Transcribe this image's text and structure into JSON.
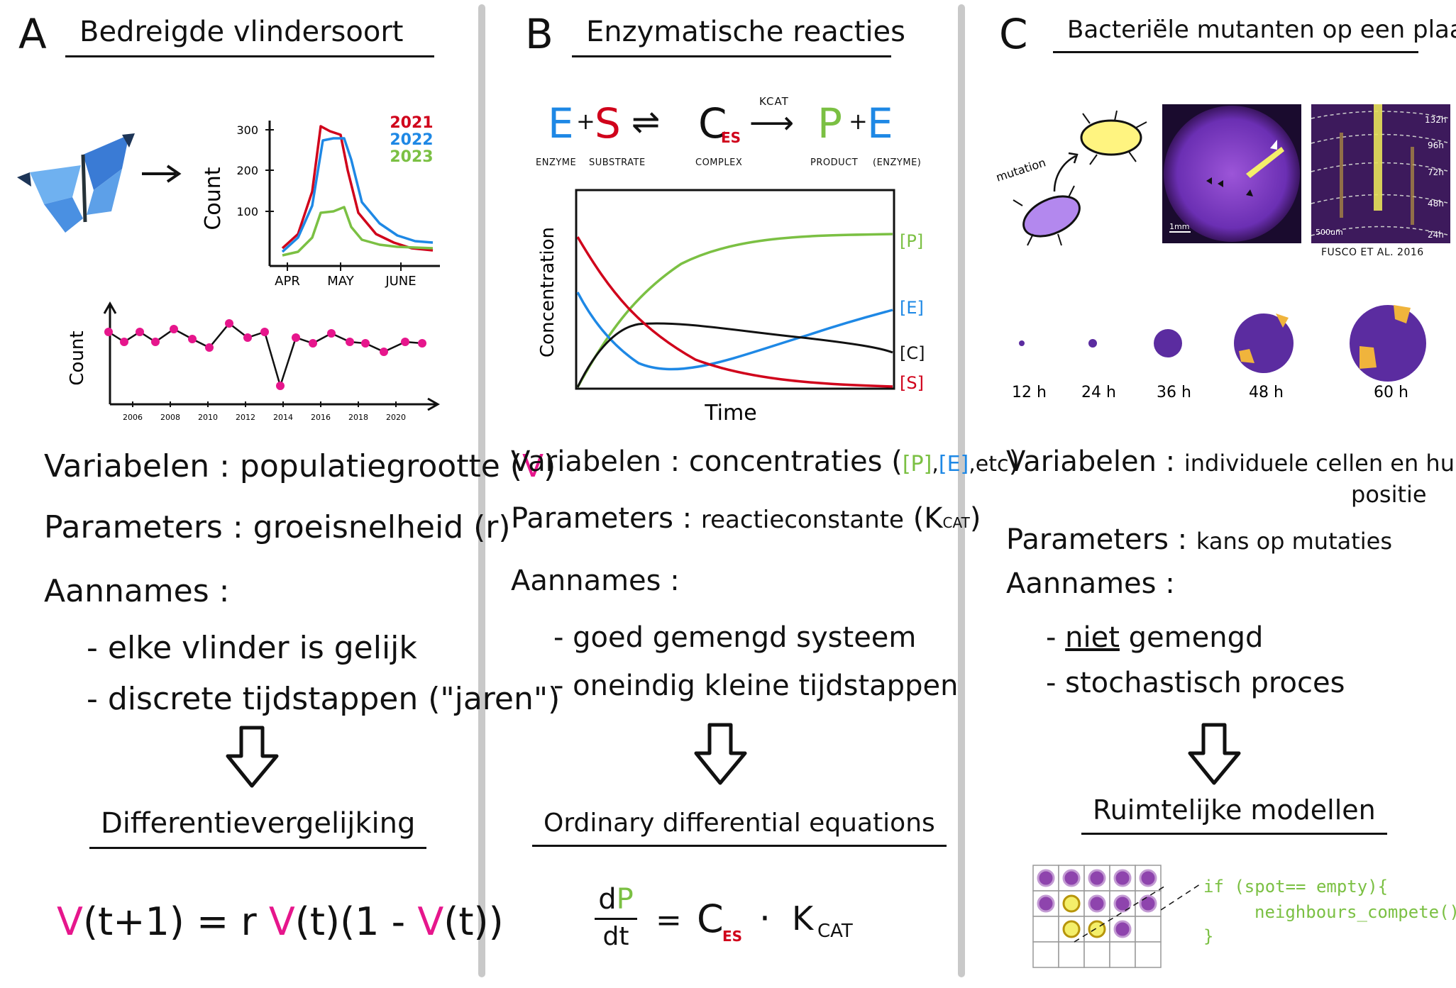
{
  "panelA": {
    "letter": "A",
    "title": "Bedreigde vlindersoort",
    "season_chart": {
      "ylabel": "Count",
      "yticks": [
        "300",
        "200",
        "100"
      ],
      "xticks": [
        "APR",
        "MAY",
        "JUNE"
      ],
      "legend": [
        "2021",
        "2022",
        "2023"
      ],
      "colors": [
        "#d0021b",
        "#1e88e5",
        "#7bc043"
      ]
    },
    "yearly_chart": {
      "ylabel": "Count",
      "xticks": [
        "2006",
        "2008",
        "2010",
        "2012",
        "2014",
        "2016",
        "2018",
        "2020"
      ]
    },
    "variables_label": "Variabelen",
    "variables_value": "populatiegrootte",
    "variables_symbol": "V",
    "parameters_label": "Parameters",
    "parameters_value": "groeisnelheid (r)",
    "assumptions_label": "Aannames",
    "assumptions": [
      "elke vlinder is gelijk",
      "discrete tijdstappen (\"jaren\")"
    ],
    "model": "Differentievergelijking",
    "equation": {
      "lhs": "V",
      "lhs_rest": "(t+1) = r ",
      "mid": "V",
      "mid_rest": "(t)(1 - ",
      "end": "V",
      "end_rest": "(t))"
    }
  },
  "panelB": {
    "letter": "B",
    "title": "Enzymatische reacties",
    "reaction": {
      "E": "E",
      "plus1": "+",
      "S": "S",
      "arrow": "⇌",
      "C": "C",
      "C_sub": "ES",
      "kcat": "KCAT",
      "arrow2": "⟶",
      "P": "P",
      "plus2": "+",
      "E2": "E",
      "labels": [
        "ENZYME",
        "SUBSTRATE",
        "COMPLEX",
        "PRODUCT",
        "(ENZYME)"
      ]
    },
    "chart": {
      "ylabel": "Concentration",
      "xlabel": "Time",
      "labels": [
        "[P]",
        "[E]",
        "[C]",
        "[S]"
      ]
    },
    "variables_label": "Variabelen",
    "variables_value": "concentraties",
    "variables_P": "[P]",
    "variables_E": "[E]",
    "variables_etc": ",etc",
    "parameters_label": "Parameters",
    "parameters_value": "reactieconstante",
    "parameters_symbol": "(K",
    "parameters_sub": "CAT",
    "parameters_close": ")",
    "assumptions_label": "Aannames",
    "assumptions": [
      "goed gemengd systeem",
      "oneindig kleine tijdstappen"
    ],
    "model": "Ordinary differential equations",
    "equation": {
      "num": "dP",
      "den": "dt",
      "rhs_c": "C",
      "rhs_c_sub": "ES",
      "rhs_dot": "·",
      "rhs_k": "K",
      "rhs_k_sub": "CAT"
    }
  },
  "panelC": {
    "letter": "C",
    "title": "Bacteriële mutanten op een plaat",
    "mutation_label": "mutation",
    "scale1": "1mm",
    "scale2": "500um",
    "hours_right": [
      "132h",
      "96h",
      "72h",
      "48h",
      "24h"
    ],
    "credit": "FUSCO ET AL. 2016",
    "timepoints": [
      "12 h",
      "24 h",
      "36 h",
      "48 h",
      "60 h"
    ],
    "variables_label": "Variabelen",
    "variables_value": "individuele cellen en hun",
    "variables_value2": "positie",
    "parameters_label": "Parameters",
    "parameters_value": "kans op mutaties",
    "assumptions_label": "Aannames",
    "assumptions_niet": "niet",
    "assumptions_rest1": "gemengd",
    "assumptions": [
      "stochastisch proces"
    ],
    "model": "Ruimtelijke modellen",
    "code": [
      "if (spot== empty){",
      "neighbours_compete()",
      "}"
    ]
  }
}
